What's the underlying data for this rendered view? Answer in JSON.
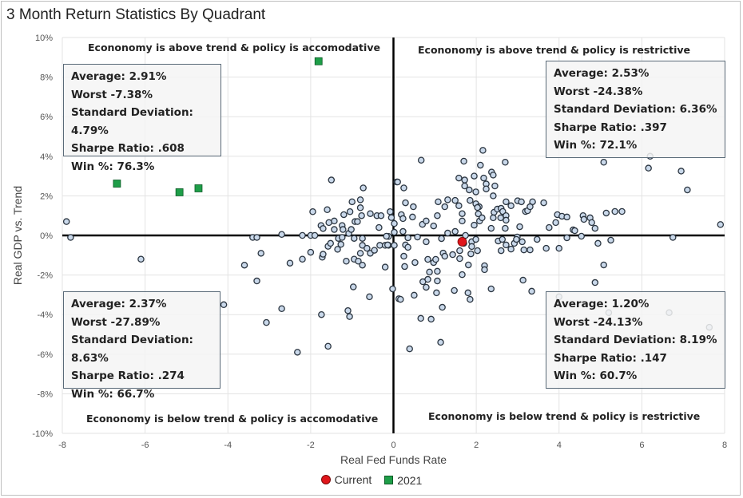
{
  "chart_data": {
    "type": "scatter",
    "title": "3 Month Return Statistics By Quadrant",
    "xlabel": "Real Fed Funds Rate",
    "ylabel": "Real GDP vs. Trend",
    "xlim": [
      -8,
      8
    ],
    "ylim": [
      -10,
      10
    ],
    "xticks": [
      "-8",
      "-6",
      "-4",
      "-2",
      "0",
      "2",
      "4",
      "6",
      "8"
    ],
    "yticks": [
      "10%",
      "8%",
      "6%",
      "4%",
      "2%",
      "0%",
      "-2%",
      "-4%",
      "-6%",
      "-8%",
      "-10%"
    ],
    "grid": true,
    "legend_position": "bottom",
    "colors": {
      "history": "#c9d8ea",
      "history_edge": "#2b3540",
      "current": "#e0161b",
      "y2021": "#1e9e48"
    },
    "series": [
      {
        "name": "",
        "marker": "circle",
        "points": [
          [
            -7.9,
            0.7
          ],
          [
            -7.8,
            -0.1
          ],
          [
            -6.1,
            -1.2
          ],
          [
            -3.6,
            -1.5
          ],
          [
            -3.4,
            -0.1
          ],
          [
            -3.3,
            -0.1
          ],
          [
            -3.2,
            -0.9
          ],
          [
            -3.3,
            -2.3
          ],
          [
            -2.7,
            0.05
          ],
          [
            -2.5,
            -1.4
          ],
          [
            -2.2,
            0
          ],
          [
            -2.2,
            -1.2
          ],
          [
            -2.0,
            0
          ],
          [
            -1.9,
            0
          ],
          [
            -2.0,
            -0.85
          ],
          [
            -1.95,
            1.2
          ],
          [
            -1.6,
            1.3
          ],
          [
            -1.5,
            2.8
          ],
          [
            -0.73,
            2.4
          ],
          [
            -1.0,
            1.7
          ],
          [
            -0.8,
            1.8
          ],
          [
            -0.8,
            1.4
          ],
          [
            -1.2,
            1.05
          ],
          [
            -1.05,
            1.2
          ],
          [
            -0.77,
            1.0
          ],
          [
            -0.56,
            1.1
          ],
          [
            -0.4,
            1.0
          ],
          [
            -0.3,
            1.0
          ],
          [
            -0.08,
            1.2
          ],
          [
            -0.05,
            0.9
          ],
          [
            -0.35,
            0.4
          ],
          [
            0.02,
            0.6
          ],
          [
            0.08,
            2.7
          ],
          [
            -1.75,
            0.5
          ],
          [
            -1.7,
            0.35
          ],
          [
            -1.56,
            0.65
          ],
          [
            -1.43,
            0.73
          ],
          [
            -1.43,
            0.3
          ],
          [
            -1.24,
            0.5
          ],
          [
            -1.22,
            0.3
          ],
          [
            -1.08,
            0.1
          ],
          [
            -1.02,
            0.3
          ],
          [
            -0.93,
            0.7
          ],
          [
            -0.87,
            0.7
          ],
          [
            -1.33,
            -0.15
          ],
          [
            -1.24,
            -0.1
          ],
          [
            -0.95,
            -0.15
          ],
          [
            -0.75,
            -0.15
          ],
          [
            -0.12,
            -0.05
          ],
          [
            -1.58,
            -0.55
          ],
          [
            -1.52,
            -0.4
          ],
          [
            -1.35,
            -0.7
          ],
          [
            -1.27,
            -0.45
          ],
          [
            -0.75,
            -0.5
          ],
          [
            -0.64,
            -0.65
          ],
          [
            -0.56,
            -0.9
          ],
          [
            -0.46,
            -0.75
          ],
          [
            -0.8,
            -0.9
          ],
          [
            -0.33,
            -0.5
          ],
          [
            -0.2,
            -0.5
          ],
          [
            -0.12,
            -0.5
          ],
          [
            0.02,
            -0.5
          ],
          [
            -1.72,
            -1.1
          ],
          [
            -1.7,
            -0.95
          ],
          [
            -1.14,
            -1.3
          ],
          [
            -0.95,
            -1.2
          ],
          [
            -0.85,
            -1.3
          ],
          [
            -0.75,
            -1.5
          ],
          [
            -0.2,
            -1.6
          ],
          [
            -0.97,
            -2.6
          ],
          [
            -0.58,
            -3.1
          ],
          [
            -0.02,
            -2.7
          ],
          [
            0.13,
            -3.2
          ],
          [
            -4.1,
            -3.5
          ],
          [
            -2.7,
            -3.7
          ],
          [
            -3.07,
            -4.4
          ],
          [
            -1.74,
            -4.0
          ],
          [
            -1.1,
            -3.8
          ],
          [
            -1.06,
            -4.1
          ],
          [
            -2.32,
            -5.9
          ],
          [
            -1.58,
            -5.6
          ],
          [
            2.16,
            4.3
          ],
          [
            0.67,
            3.8
          ],
          [
            1.7,
            3.75
          ],
          [
            2.1,
            3.55
          ],
          [
            2.7,
            3.7
          ],
          [
            5.08,
            3.7
          ],
          [
            6.2,
            4.0
          ],
          [
            6.16,
            3.4
          ],
          [
            6.95,
            3.25
          ],
          [
            7.1,
            2.3
          ],
          [
            7.9,
            0.55
          ],
          [
            6.75,
            -0.1
          ],
          [
            0.1,
            2.7
          ],
          [
            0.25,
            2.4
          ],
          [
            1.58,
            2.9
          ],
          [
            1.72,
            2.8
          ],
          [
            1.95,
            3.0
          ],
          [
            2.18,
            2.9
          ],
          [
            2.37,
            3.2
          ],
          [
            2.41,
            3.05
          ],
          [
            1.72,
            2.5
          ],
          [
            1.83,
            2.3
          ],
          [
            1.99,
            2.2
          ],
          [
            2.24,
            2.6
          ],
          [
            2.24,
            2.35
          ],
          [
            2.45,
            2.5
          ],
          [
            2.41,
            2.0
          ],
          [
            0.29,
            1.65
          ],
          [
            0.48,
            1.45
          ],
          [
            1.08,
            1.7
          ],
          [
            1.24,
            1.45
          ],
          [
            1.31,
            1.8
          ],
          [
            1.49,
            1.77
          ],
          [
            1.58,
            1.5
          ],
          [
            1.85,
            1.77
          ],
          [
            1.99,
            1.6
          ],
          [
            2.07,
            1.45
          ],
          [
            2.72,
            1.7
          ],
          [
            2.84,
            1.5
          ],
          [
            3.0,
            1.75
          ],
          [
            3.09,
            1.7
          ],
          [
            3.36,
            1.7
          ],
          [
            3.63,
            1.65
          ],
          [
            0.19,
            1.05
          ],
          [
            0.23,
            0.85
          ],
          [
            0.46,
            0.93
          ],
          [
            0.7,
            0.56
          ],
          [
            0.79,
            0.73
          ],
          [
            0.97,
            0.48
          ],
          [
            1.06,
            1.0
          ],
          [
            1.66,
            1.1
          ],
          [
            1.66,
            0.73
          ],
          [
            1.95,
            0.52
          ],
          [
            2.05,
            1.09
          ],
          [
            2.08,
            0.73
          ],
          [
            2.14,
            0.89
          ],
          [
            2.03,
            1.41
          ],
          [
            2.43,
            1.17
          ],
          [
            2.51,
            1.33
          ],
          [
            2.6,
            1.37
          ],
          [
            2.64,
            1.21
          ],
          [
            2.59,
            0.89
          ],
          [
            2.72,
            1.0
          ],
          [
            2.72,
            0.77
          ],
          [
            2.41,
            0.89
          ],
          [
            3.19,
            1.21
          ],
          [
            3.24,
            1.25
          ],
          [
            3.3,
            1.45
          ],
          [
            3.96,
            1.05
          ],
          [
            4.07,
            0.97
          ],
          [
            4.19,
            0.93
          ],
          [
            3.92,
            0.65
          ],
          [
            3.76,
            0.4
          ],
          [
            4.58,
            1.0
          ],
          [
            4.6,
            0.81
          ],
          [
            4.75,
            0.89
          ],
          [
            4.79,
            0.65
          ],
          [
            4.87,
            0.36
          ],
          [
            5.14,
            1.13
          ],
          [
            5.35,
            1.21
          ],
          [
            5.52,
            1.21
          ],
          [
            2.36,
            0.36
          ],
          [
            2.7,
            0.36
          ],
          [
            3.05,
            0.44
          ],
          [
            4.34,
            0.28
          ],
          [
            4.38,
            0.24
          ],
          [
            -0.17,
            -0.04
          ],
          [
            0.02,
            0.16
          ],
          [
            0.23,
            0.2
          ],
          [
            0.35,
            -0.12
          ],
          [
            0.58,
            -0.08
          ],
          [
            0.79,
            -0.32
          ],
          [
            1.16,
            -0.16
          ],
          [
            1.31,
            0.12
          ],
          [
            1.49,
            0.2
          ],
          [
            1.74,
            0
          ],
          [
            1.89,
            -0.32
          ],
          [
            1.99,
            -0.2
          ],
          [
            0.29,
            -0.48
          ],
          [
            0.35,
            -0.6
          ],
          [
            -0.14,
            -0.48
          ],
          [
            2.53,
            -0.28
          ],
          [
            2.63,
            -0.2
          ],
          [
            2.72,
            -0.48
          ],
          [
            2.84,
            -0.69
          ],
          [
            2.92,
            -0.4
          ],
          [
            2.99,
            -0.08
          ],
          [
            3.11,
            -0.32
          ],
          [
            3.47,
            -0.2
          ],
          [
            3.15,
            -0.73
          ],
          [
            3.3,
            -0.73
          ],
          [
            3.69,
            -0.65
          ],
          [
            4.0,
            -0.65
          ],
          [
            4.19,
            -0.12
          ],
          [
            4.54,
            -0.04
          ],
          [
            4.94,
            -0.4
          ],
          [
            5.25,
            -0.24
          ],
          [
            2.6,
            -0.77
          ],
          [
            2.97,
            -0.2
          ],
          [
            1.2,
            -0.89
          ],
          [
            1.24,
            -1.05
          ],
          [
            1.43,
            -0.97
          ],
          [
            1.6,
            -0.77
          ],
          [
            1.6,
            -1.17
          ],
          [
            1.89,
            -0.56
          ],
          [
            2.03,
            -0.77
          ],
          [
            1.87,
            -0.93
          ],
          [
            1.7,
            -0.4
          ],
          [
            0.25,
            -1.05
          ],
          [
            0.27,
            -1.57
          ],
          [
            0.52,
            -1.37
          ],
          [
            0.83,
            -1.21
          ],
          [
            0.97,
            -1.37
          ],
          [
            1.02,
            -1.21
          ],
          [
            0.87,
            -1.85
          ],
          [
            1.06,
            -1.81
          ],
          [
            0.71,
            -2.34
          ],
          [
            0.83,
            -2.22
          ],
          [
            0.79,
            -2.62
          ],
          [
            1.06,
            -2.3
          ],
          [
            1.04,
            -2.9
          ],
          [
            1.47,
            -2.78
          ],
          [
            1.66,
            -1.98
          ],
          [
            1.81,
            -1.49
          ],
          [
            2.2,
            -1.53
          ],
          [
            2.2,
            -1.73
          ],
          [
            1.8,
            -2.9
          ],
          [
            1.85,
            -3.23
          ],
          [
            1.18,
            -3.63
          ],
          [
            0.5,
            -3.02
          ],
          [
            0.17,
            -3.23
          ],
          [
            2.36,
            -2.7
          ],
          [
            3.13,
            -2.26
          ],
          [
            3.34,
            -2.82
          ],
          [
            4.87,
            -2.38
          ],
          [
            5.08,
            -1.49
          ],
          [
            0.66,
            -4.19
          ],
          [
            0.91,
            -4.23
          ],
          [
            1.14,
            -5.4
          ],
          [
            0.39,
            -5.73
          ],
          [
            4.0,
            -3.1
          ],
          [
            6.66,
            -3.9
          ],
          [
            7.63,
            -4.64
          ],
          [
            5.2,
            -3.9
          ]
        ]
      },
      {
        "name": "Current",
        "marker": "circle",
        "points": [
          [
            1.66,
            -0.32
          ]
        ]
      },
      {
        "name": "2021",
        "marker": "square",
        "points": [
          [
            -6.68,
            2.62
          ],
          [
            -5.17,
            2.18
          ],
          [
            -4.71,
            2.38
          ],
          [
            -1.81,
            8.8
          ]
        ]
      }
    ],
    "annotations": {
      "quadrant_labels": {
        "top_left": "Econonomy is above trend & policy is accomodative",
        "top_right": "Econonomy is above trend & policy is restrictive",
        "bottom_left": "Econonomy is below trend & policy is accomodative",
        "bottom_right": "Econonomy is below trend & policy is restrictive"
      },
      "stats": {
        "top_left": [
          "Average: 2.91%",
          "Worst -7.38%",
          "Standard Deviation: 4.79%",
          "Sharpe Ratio: .608",
          "Win %: 76.3%"
        ],
        "top_right": [
          "Average: 2.53%",
          "Worst -24.38%",
          "Standard Deviation: 6.36%",
          "Sharpe Ratio: .397",
          "Win %: 72.1%"
        ],
        "bottom_left": [
          "Average: 2.37%",
          "Worst -27.89%",
          "Standard Deviation: 8.63%",
          "Sharpe Ratio: .274",
          "Win %: 66.7%"
        ],
        "bottom_right": [
          "Average: 1.20%",
          "Worst -24.13%",
          "Standard Deviation: 8.19%",
          "Sharpe Ratio: .147",
          "Win %: 60.7%"
        ]
      }
    }
  }
}
